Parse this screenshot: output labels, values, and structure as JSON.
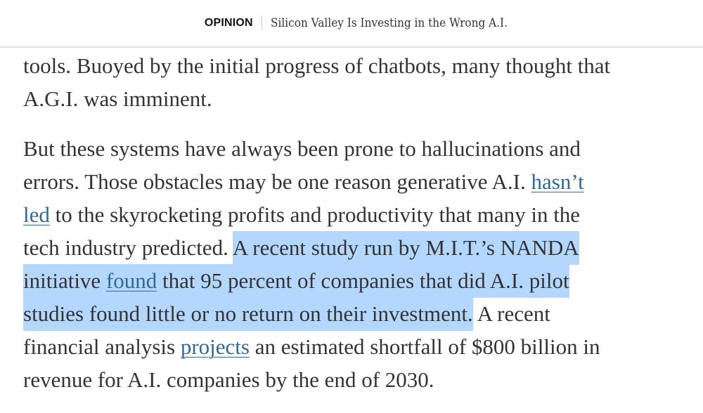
{
  "header": {
    "section": "OPINION",
    "headline": "Silicon Valley Is Investing in the Wrong A.I."
  },
  "colors": {
    "highlight": "#b3d7ff",
    "link": "#326891",
    "text": "#333333"
  },
  "paragraphs": [
    {
      "lines": [
        [
          {
            "text": "tools. Buoyed by the initial progress of chatbots, many thought that"
          }
        ],
        [
          {
            "text": "A.G.I. was imminent."
          }
        ]
      ]
    },
    {
      "lines": [
        [
          {
            "text": "But these systems have always been prone to hallucinations and"
          }
        ],
        [
          {
            "text": "errors. Those obstacles may be one reason generative A.I. "
          },
          {
            "text": "hasn’t",
            "link": true
          }
        ],
        [
          {
            "text": "led",
            "link": true
          },
          {
            "text": " to the skyrocketing profits and productivity that many in the"
          }
        ],
        [
          {
            "text": "tech industry predicted. "
          },
          {
            "text": "A recent study run by M.I.T.’s NANDA",
            "highlight": true
          }
        ],
        [
          {
            "text": "initiative ",
            "highlight": true
          },
          {
            "text": "found",
            "link": true,
            "highlight": true
          },
          {
            "text": " that 95 percent of companies that did A.I. pilot",
            "highlight": true
          }
        ],
        [
          {
            "text": "studies found little or no return on their investment.",
            "highlight": true
          },
          {
            "text": " A recent"
          }
        ],
        [
          {
            "text": "financial analysis "
          },
          {
            "text": "projects",
            "link": true
          },
          {
            "text": " an estimated shortfall of $800 billion in"
          }
        ],
        [
          {
            "text": "revenue for A.I. companies by the end of 2030."
          }
        ]
      ]
    }
  ]
}
